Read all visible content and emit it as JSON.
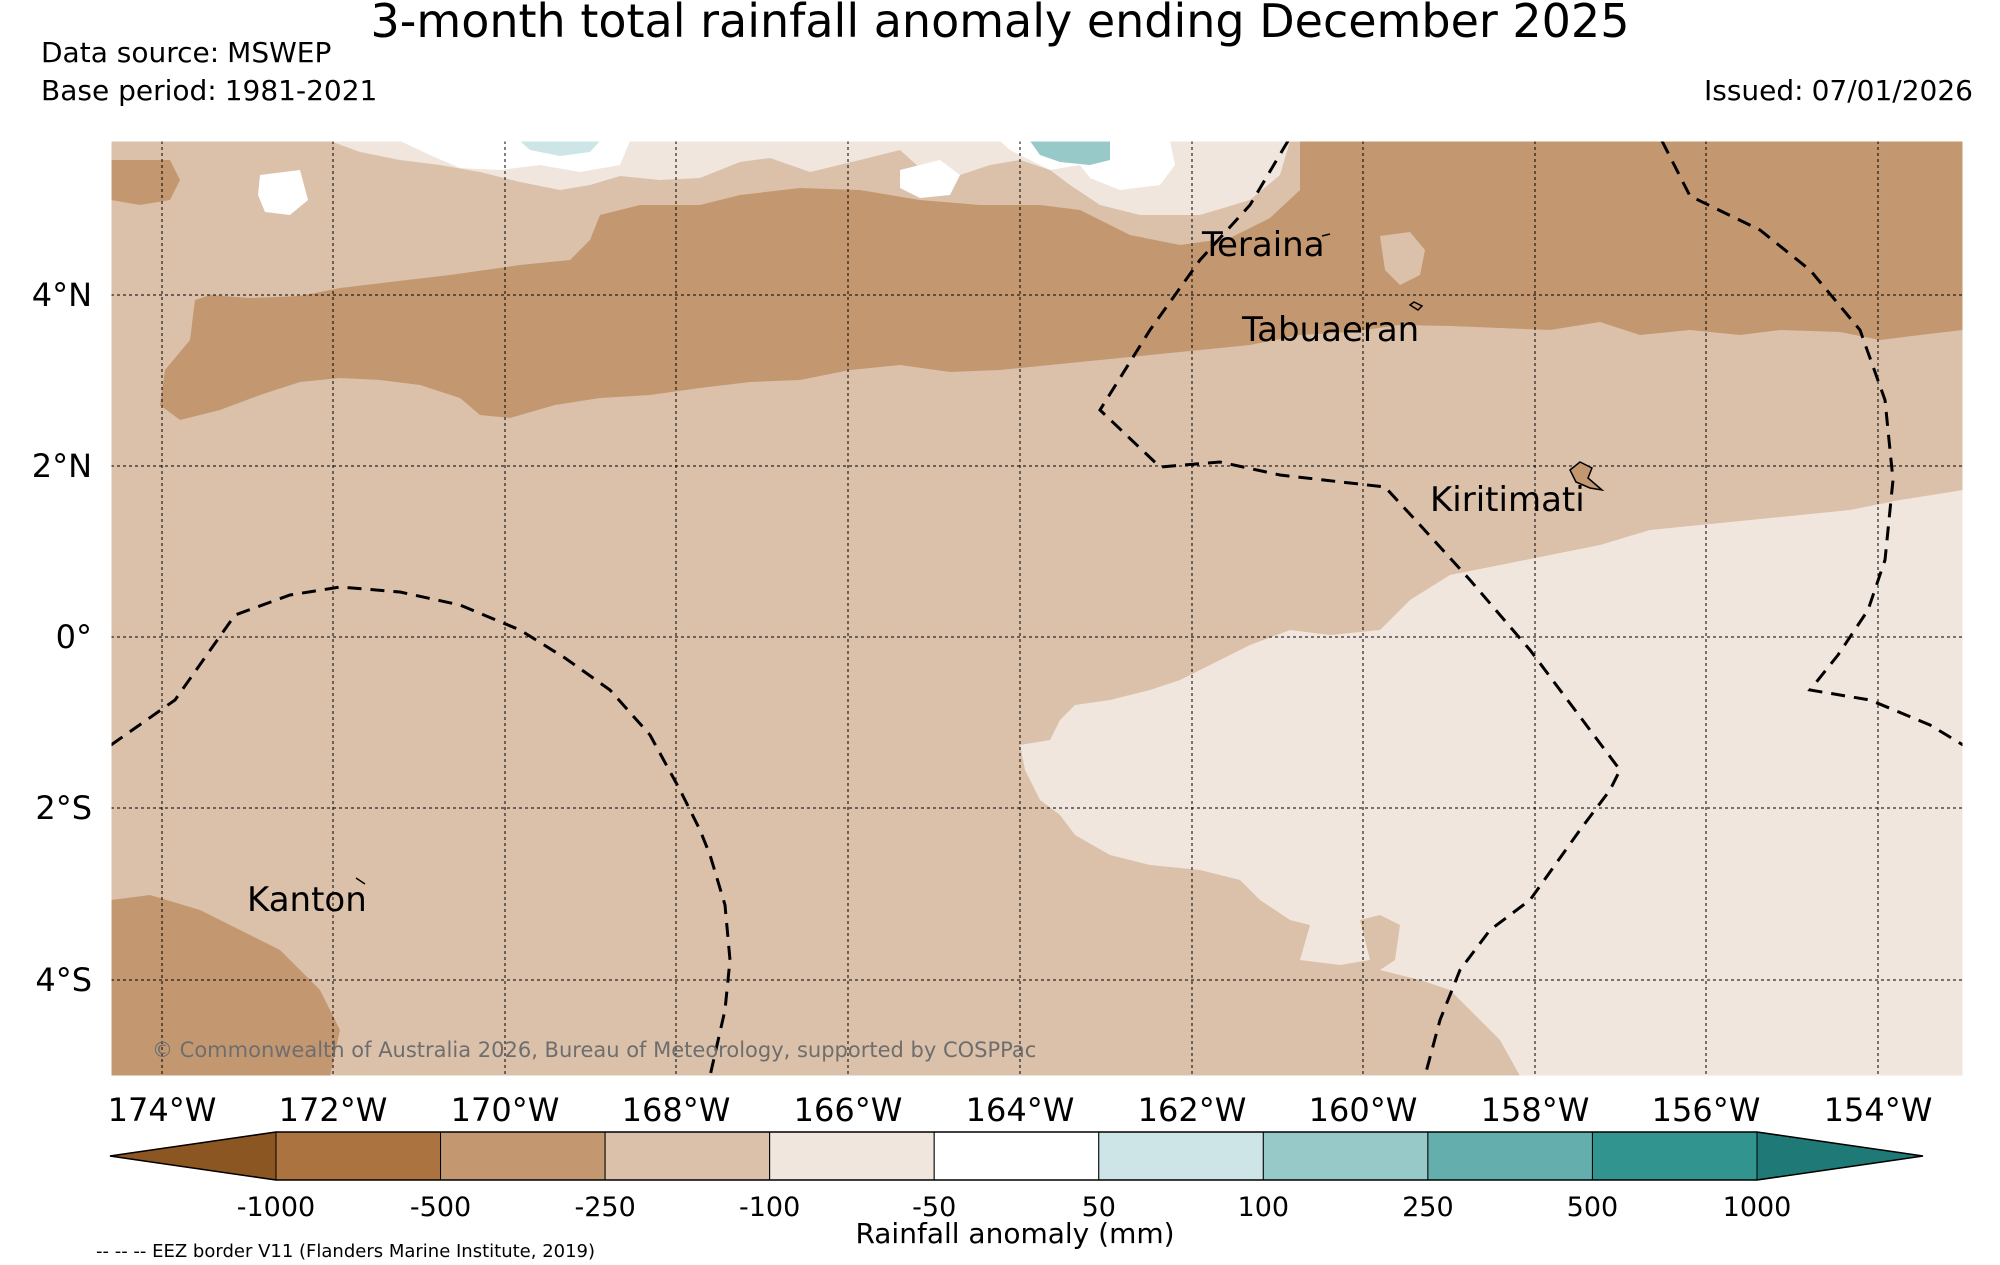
{
  "title": "3-month total rainfall anomaly ending December 2025",
  "data_source": {
    "label": "Data source:",
    "value": "MSWEP"
  },
  "base_period": {
    "label": "Base period:",
    "value": "1981-2021"
  },
  "issued": {
    "label": "Issued:",
    "value": "07/01/2026"
  },
  "lon_ticks": [
    "174°W",
    "172°W",
    "170°W",
    "168°W",
    "166°W",
    "164°W",
    "162°W",
    "160°W",
    "158°W",
    "156°W",
    "154°W"
  ],
  "lat_ticks": [
    "4°N",
    "2°N",
    "0°",
    "2°S",
    "4°S"
  ],
  "places": [
    {
      "name": "Teraina"
    },
    {
      "name": "Tabuaeran"
    },
    {
      "name": "Kiritimati"
    },
    {
      "name": "Kanton"
    }
  ],
  "copyright": "© Commonwealth of Australia 2026, Bureau of Meteorology, supported by COSPPac",
  "colorbar": {
    "label": "Rainfall anomaly (mm)",
    "ticks": [
      "-1000",
      "-500",
      "-250",
      "-100",
      "-50",
      "50",
      "100",
      "250",
      "500",
      "1000"
    ],
    "colors": [
      "#8c5623",
      "#aa733f",
      "#c39870",
      "#dbc1aa",
      "#f0e6dd",
      "#ffffff",
      "#cde5e6",
      "#98c9c9",
      "#65aeae",
      "#31948f",
      "#1f7a77"
    ]
  },
  "eez_note": "-- -- -- EEZ border V11 (Flanders Marine Institute, 2019)",
  "colors": {
    "dry_strong": "#c39870",
    "dry_moderate": "#dbc1aa",
    "dry_weak": "#f0e6dd",
    "wet_weak": "#cde5e6",
    "wet_moderate": "#98c9c9"
  }
}
